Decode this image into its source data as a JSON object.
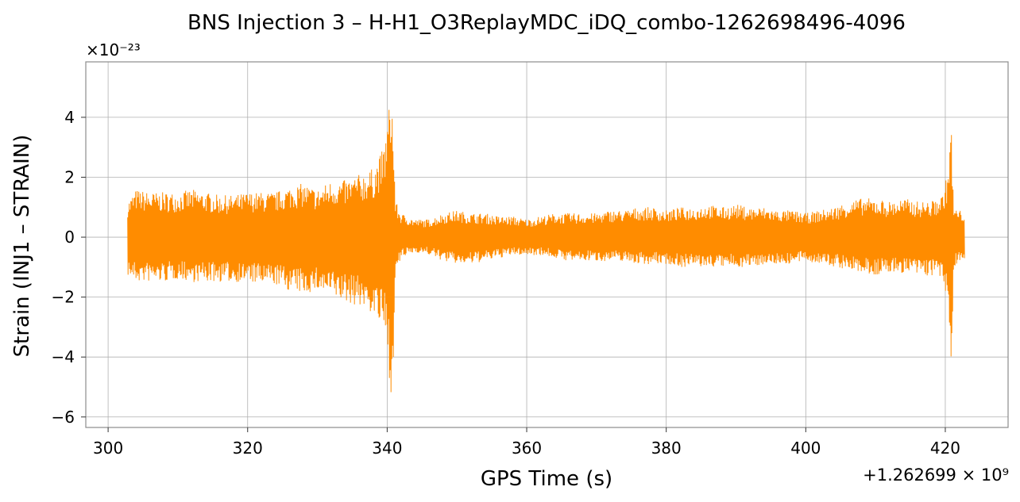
{
  "chart_data": {
    "type": "line",
    "title": "BNS Injection 3 – H-H1_O3ReplayMDC_iDQ_combo-1262698496-4096",
    "xlabel": "GPS Time (s)",
    "ylabel": "Strain (INJ1 – STRAIN)",
    "y_multiplier_label": "×10⁻²³",
    "x_offset_label": "+1.262699 × 10⁹",
    "x_ticks": [
      300,
      320,
      340,
      360,
      380,
      400,
      420
    ],
    "x_tick_labels": [
      "300",
      "320",
      "340",
      "360",
      "380",
      "400",
      "420"
    ],
    "y_ticks": [
      -6,
      -4,
      -2,
      0,
      2,
      4
    ],
    "y_tick_labels": [
      "−6",
      "−4",
      "−2",
      "0",
      "2",
      "4"
    ],
    "xlim": [
      296.8,
      429.0
    ],
    "ylim": [
      -6.35,
      5.85
    ],
    "grid": true,
    "line_color": "#ff8c00",
    "series": [
      {
        "x_start": 302.8,
        "x_end": 422.8,
        "envelope_x": [
          302.8,
          304,
          306,
          308,
          310,
          312,
          314,
          316,
          318,
          320,
          322,
          324,
          326,
          328,
          330,
          332,
          334,
          336,
          338,
          339.5,
          340.2,
          340.6,
          341.2,
          342,
          344,
          346,
          348,
          350,
          352,
          354,
          356,
          358,
          360,
          362,
          364,
          366,
          368,
          370,
          372,
          374,
          376,
          378,
          380,
          382,
          384,
          386,
          388,
          390,
          392,
          394,
          396,
          398,
          400,
          402,
          404,
          406,
          408,
          410,
          412,
          414,
          416,
          418,
          419.5,
          420.4,
          420.8,
          421.2,
          422,
          422.8
        ],
        "envelope_upper": [
          1.2,
          1.6,
          1.5,
          1.5,
          1.5,
          1.6,
          1.5,
          1.4,
          1.4,
          1.5,
          1.5,
          1.5,
          1.7,
          1.8,
          1.6,
          1.9,
          1.9,
          2.1,
          2.3,
          3.0,
          4.2,
          5.4,
          1.2,
          0.8,
          0.6,
          0.6,
          0.8,
          0.9,
          0.8,
          0.8,
          0.7,
          0.7,
          0.6,
          0.7,
          0.8,
          0.8,
          0.8,
          0.8,
          0.9,
          0.9,
          1.0,
          1.0,
          0.9,
          1.0,
          1.0,
          1.1,
          1.0,
          1.1,
          1.0,
          1.0,
          0.9,
          0.9,
          0.8,
          0.9,
          1.0,
          1.2,
          1.3,
          1.3,
          1.2,
          1.3,
          1.2,
          1.2,
          1.4,
          2.2,
          4.2,
          1.0,
          0.9,
          0.9
        ],
        "envelope_lower": [
          -1.3,
          -1.5,
          -1.5,
          -1.5,
          -1.4,
          -1.5,
          -1.5,
          -1.5,
          -1.5,
          -1.5,
          -1.6,
          -1.6,
          -1.8,
          -1.9,
          -1.8,
          -2.0,
          -2.2,
          -2.3,
          -2.6,
          -3.2,
          -4.5,
          -5.8,
          -1.2,
          -0.7,
          -0.5,
          -0.6,
          -0.8,
          -0.9,
          -0.9,
          -0.8,
          -0.7,
          -0.6,
          -0.6,
          -0.6,
          -0.7,
          -0.8,
          -0.8,
          -0.8,
          -0.8,
          -0.8,
          -0.9,
          -0.9,
          -0.9,
          -1.0,
          -1.0,
          -1.0,
          -1.0,
          -1.0,
          -1.0,
          -0.9,
          -0.9,
          -0.9,
          -0.8,
          -0.9,
          -1.0,
          -1.1,
          -1.2,
          -1.3,
          -1.2,
          -1.2,
          -1.3,
          -1.3,
          -1.4,
          -2.4,
          -4.4,
          -1.0,
          -0.8,
          -0.8
        ]
      }
    ]
  }
}
